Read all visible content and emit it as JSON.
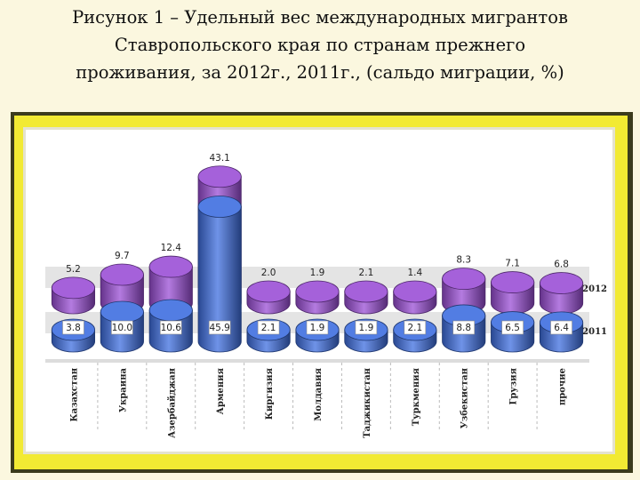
{
  "slide": {
    "title": "Рисунок 1 – Удельный вес международных мигрантов\nСтавропольского края по странам прежнего\nпроживания, за 2012г., 2011г., (сальдо миграции, %)"
  },
  "chart_data": {
    "type": "bar",
    "style": "3d-cylinder",
    "categories": [
      "Казахстан",
      "Украина",
      "Азербайджан",
      "Армения",
      "Киргизия",
      "Молдавия",
      "Таджикистан",
      "Туркмения",
      "Узбекистан",
      "Грузия",
      "прочие"
    ],
    "series": [
      {
        "name": "2012",
        "values": [
          5.2,
          9.7,
          12.4,
          43.1,
          2.0,
          1.9,
          2.1,
          1.4,
          8.3,
          7.1,
          6.8
        ],
        "color": "#9b4fd6"
      },
      {
        "name": "2011",
        "values": [
          3.8,
          10.0,
          10.6,
          45.9,
          2.1,
          1.9,
          1.9,
          2.1,
          8.8,
          6.5,
          6.4
        ],
        "color": "#3f6fe0"
      }
    ],
    "value_labels": {
      "2012": [
        "5.2",
        "9.7",
        "12.4",
        "43.1",
        "2.0",
        "1.9",
        "2.1",
        "1.4",
        "8.3",
        "7.1",
        "6.8"
      ],
      "2011": [
        "3.8",
        "10.0",
        "10.6",
        "45.9",
        "2.1",
        "1.9",
        "1.9",
        "2.1",
        "8.8",
        "6.5",
        "6.4"
      ]
    },
    "series_labels": [
      "2012",
      "2011"
    ],
    "grid": false
  }
}
